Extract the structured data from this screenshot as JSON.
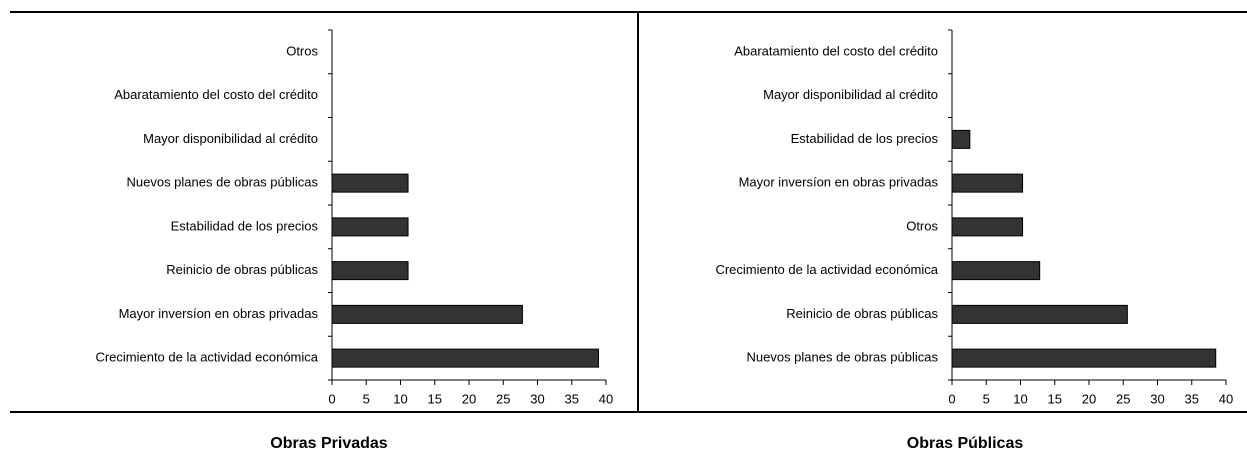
{
  "chart_data": [
    {
      "type": "bar",
      "orientation": "horizontal",
      "title": "Obras Privadas",
      "categories": [
        "Crecimiento de la actividad económica",
        "Mayor inversíon en obras privadas",
        "Reinicio de obras públicas",
        "Estabilidad de los precios",
        "Nuevos planes de obras públicas",
        "Mayor disponibilidad al crédito",
        "Abaratamiento del costo del crédito",
        "Otros"
      ],
      "values": [
        38.9,
        27.8,
        11.1,
        11.1,
        11.1,
        0,
        0,
        0
      ],
      "color": "#333333",
      "xlim": [
        0,
        40
      ],
      "xticks": [
        0,
        5,
        10,
        15,
        20,
        25,
        30,
        35,
        40
      ],
      "grid": false
    },
    {
      "type": "bar",
      "orientation": "horizontal",
      "title": "Obras Públicas",
      "categories": [
        "Nuevos planes de obras públicas",
        "Reinicio de obras públicas",
        "Crecimiento de la actividad económica",
        "Otros",
        "Mayor inversíon en obras privadas",
        "Estabilidad de los precios",
        "Mayor disponibilidad al crédito",
        "Abaratamiento del costo del crédito"
      ],
      "values": [
        38.5,
        25.6,
        12.8,
        10.3,
        10.3,
        2.6,
        0,
        0
      ],
      "color": "#333333",
      "xlim": [
        0,
        40
      ],
      "xticks": [
        0,
        5,
        10,
        15,
        20,
        25,
        30,
        35,
        40
      ],
      "grid": false
    }
  ]
}
